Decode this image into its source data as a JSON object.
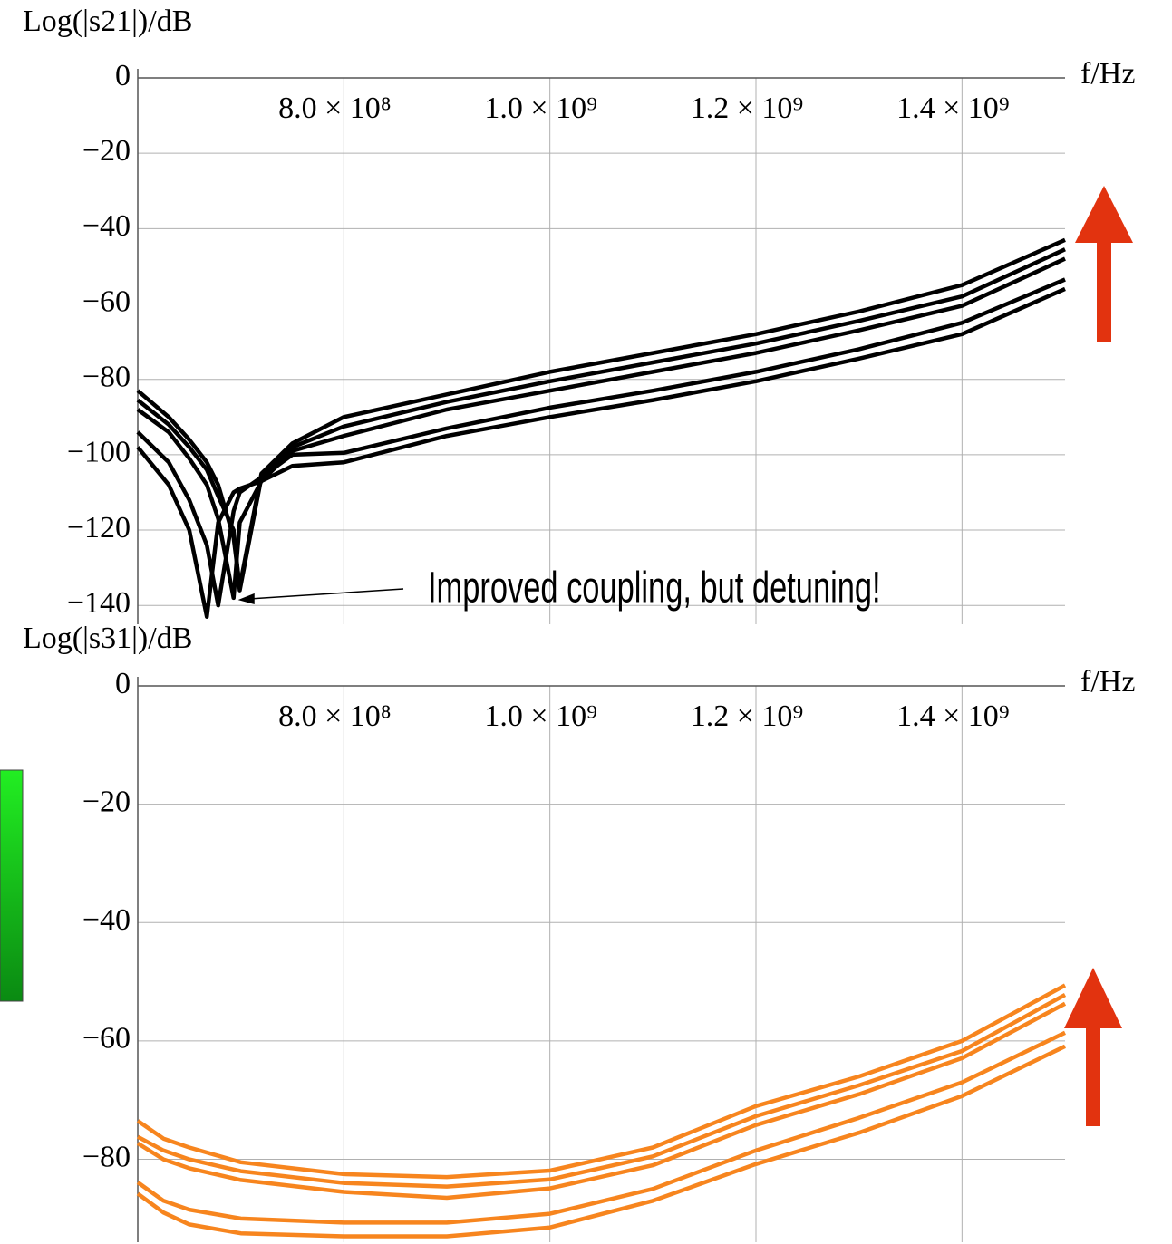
{
  "chart_data": [
    {
      "type": "line",
      "y_label": "Log(|s21|)/dB",
      "x_label": "f/Hz",
      "annotation": "Improved coupling, but detuning!",
      "x": [
        600000000,
        630000000,
        650000000,
        667000000,
        678000000,
        693000000,
        699000000,
        720000000,
        750000000,
        800000000,
        900000000,
        1000000000,
        1100000000,
        1200000000,
        1300000000,
        1400000000,
        1500000000
      ],
      "xlim": [
        600000000,
        1500000000
      ],
      "ylim": [
        -145,
        0
      ],
      "xticks": [
        {
          "value": 800000000,
          "label": "8.0 × 10⁸"
        },
        {
          "value": 1000000000,
          "label": "1.0 × 10⁹"
        },
        {
          "value": 1200000000,
          "label": "1.2 × 10⁹"
        },
        {
          "value": 1400000000,
          "label": "1.4 × 10⁹"
        }
      ],
      "yticks": [
        0,
        {
          "value": -20,
          "label": "−20"
        },
        {
          "value": -40,
          "label": "−40"
        },
        {
          "value": -60,
          "label": "−60"
        },
        {
          "value": -80,
          "label": "−80"
        },
        {
          "value": -100,
          "label": "−100"
        },
        {
          "value": -120,
          "label": "−120"
        },
        {
          "value": -140,
          "label": "−140"
        }
      ],
      "grid": true,
      "series": [
        {
          "color": "#000000",
          "values": [
            -83,
            -90,
            -96,
            -102,
            -108,
            -122,
            -135,
            -105,
            -97,
            -90,
            -84,
            -78,
            -73,
            -68,
            -62,
            -55,
            -43
          ]
        },
        {
          "color": "#000000",
          "values": [
            -85.5,
            -92,
            -98,
            -104,
            -111,
            -120,
            -136,
            -106,
            -98,
            -92.5,
            -86,
            -80.5,
            -75.5,
            -70.5,
            -64.5,
            -58,
            -45.5
          ]
        },
        {
          "color": "#000000",
          "values": [
            -88,
            -94,
            -101,
            -108,
            -117,
            -138,
            -118,
            -107,
            -99,
            -95,
            -88,
            -83,
            -78,
            -73,
            -67,
            -60.5,
            -48
          ]
        },
        {
          "color": "#000000",
          "values": [
            -94,
            -102,
            -112,
            -124,
            -140,
            -115,
            -110,
            -106,
            -100,
            -99.5,
            -93,
            -87.5,
            -83,
            -78,
            -72,
            -65,
            -53.5
          ]
        },
        {
          "color": "#000000",
          "values": [
            -98,
            -108,
            -120,
            -143,
            -118,
            -110,
            -109,
            -107,
            -103,
            -102,
            -95,
            -90,
            -85.5,
            -80.5,
            -74.5,
            -68,
            -56
          ]
        }
      ]
    },
    {
      "type": "line",
      "y_label": "Log(|s31|)/dB",
      "x_label": "f/Hz",
      "x": [
        600000000,
        625000000,
        650000000,
        700000000,
        800000000,
        900000000,
        1000000000,
        1100000000,
        1200000000,
        1300000000,
        1400000000,
        1500000000
      ],
      "xlim": [
        600000000,
        1500000000
      ],
      "ylim": [
        -94,
        0
      ],
      "xticks": [
        {
          "value": 800000000,
          "label": "8.0 × 10⁸"
        },
        {
          "value": 1000000000,
          "label": "1.0 × 10⁹"
        },
        {
          "value": 1200000000,
          "label": "1.2 × 10⁹"
        },
        {
          "value": 1400000000,
          "label": "1.4 × 10⁹"
        }
      ],
      "yticks": [
        0,
        {
          "value": -20,
          "label": "−20"
        },
        {
          "value": -40,
          "label": "−40"
        },
        {
          "value": -60,
          "label": "−60"
        },
        {
          "value": -80,
          "label": "−80"
        }
      ],
      "grid": true,
      "series": [
        {
          "color": "#f7851e",
          "values": [
            -73.5,
            -76.5,
            -78,
            -80.5,
            -82.5,
            -83,
            -81.9,
            -78,
            -71,
            -66,
            -60,
            -50.6
          ]
        },
        {
          "color": "#f7851e",
          "values": [
            -76.2,
            -78.5,
            -80,
            -82,
            -84,
            -84.6,
            -83.4,
            -79.5,
            -72.7,
            -67.5,
            -61.7,
            -52.2
          ]
        },
        {
          "color": "#f7851e",
          "values": [
            -77.3,
            -80,
            -81.5,
            -83.5,
            -85.5,
            -86.5,
            -84.9,
            -81,
            -74.2,
            -69,
            -62.9,
            -53.7
          ]
        },
        {
          "color": "#f7851e",
          "values": [
            -83.9,
            -87,
            -88.5,
            -90,
            -90.7,
            -90.7,
            -89.2,
            -85,
            -78.5,
            -73,
            -67,
            -58.6
          ]
        },
        {
          "color": "#f7851e",
          "values": [
            -85.8,
            -89,
            -91,
            -92.5,
            -93,
            -93,
            -91.5,
            -87,
            -80.8,
            -75.5,
            -69.3,
            -60.9
          ]
        }
      ]
    }
  ]
}
